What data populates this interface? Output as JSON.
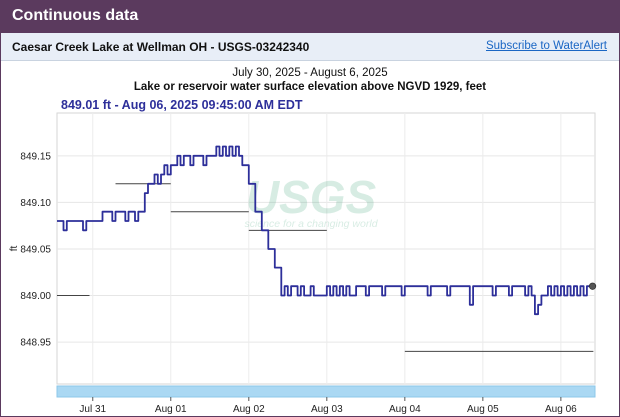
{
  "header": {
    "title": "Continuous data"
  },
  "site": {
    "name": "Caesar Creek Lake at Wellman OH - USGS-03242340",
    "alert_link": "Subscribe to WaterAlert"
  },
  "chart_data": {
    "type": "line",
    "date_range": "July 30, 2025 - August 6, 2025",
    "title": "Lake or reservoir water surface elevation above NGVD 1929, feet",
    "latest_label": "849.01 ft - Aug 06, 2025 09:45:00 AM EDT",
    "ylabel": "ft",
    "ylim": [
      848.905,
      849.196
    ],
    "xlim": [
      "2025-07-30 13:00",
      "2025-08-06 10:30"
    ],
    "y_ticks": [
      848.95,
      849.0,
      849.05,
      849.1,
      849.15
    ],
    "y_tick_labels": [
      "848.95",
      "849.00",
      "849.05",
      "849.10",
      "849.15"
    ],
    "x_ticks": [
      "2025-07-31 00:00",
      "2025-08-01 00:00",
      "2025-08-02 00:00",
      "2025-08-03 00:00",
      "2025-08-04 00:00",
      "2025-08-05 00:00",
      "2025-08-06 00:00"
    ],
    "x_tick_labels": [
      "Jul 31",
      "Aug 01",
      "Aug 02",
      "Aug 03",
      "Aug 04",
      "Aug 05",
      "Aug 06"
    ],
    "grid": true,
    "line_color": "#2d2f9a",
    "series": [
      {
        "values": [
          [
            "2025-07-30 13:00",
            849.08
          ],
          [
            "2025-07-30 14:00",
            849.08
          ],
          [
            "2025-07-30 15:00",
            849.07
          ],
          [
            "2025-07-30 16:00",
            849.08
          ],
          [
            "2025-07-30 20:00",
            849.08
          ],
          [
            "2025-07-30 21:00",
            849.07
          ],
          [
            "2025-07-30 22:00",
            849.08
          ],
          [
            "2025-07-31 01:00",
            849.08
          ],
          [
            "2025-07-31 02:00",
            849.08
          ],
          [
            "2025-07-31 03:00",
            849.09
          ],
          [
            "2025-07-31 05:00",
            849.09
          ],
          [
            "2025-07-31 06:00",
            849.08
          ],
          [
            "2025-07-31 07:00",
            849.09
          ],
          [
            "2025-07-31 09:00",
            849.09
          ],
          [
            "2025-07-31 10:00",
            849.08
          ],
          [
            "2025-07-31 11:00",
            849.09
          ],
          [
            "2025-07-31 12:00",
            849.09
          ],
          [
            "2025-07-31 13:00",
            849.08
          ],
          [
            "2025-07-31 14:00",
            849.09
          ],
          [
            "2025-07-31 16:00",
            849.11
          ],
          [
            "2025-07-31 17:00",
            849.12
          ],
          [
            "2025-07-31 18:00",
            849.12
          ],
          [
            "2025-07-31 19:00",
            849.13
          ],
          [
            "2025-07-31 20:00",
            849.12
          ],
          [
            "2025-07-31 21:00",
            849.13
          ],
          [
            "2025-07-31 22:00",
            849.14
          ],
          [
            "2025-07-31 23:00",
            849.13
          ],
          [
            "2025-08-01 00:00",
            849.14
          ],
          [
            "2025-08-01 01:00",
            849.14
          ],
          [
            "2025-08-01 02:00",
            849.15
          ],
          [
            "2025-08-01 03:00",
            849.14
          ],
          [
            "2025-08-01 04:00",
            849.15
          ],
          [
            "2025-08-01 05:00",
            849.15
          ],
          [
            "2025-08-01 06:00",
            849.14
          ],
          [
            "2025-08-01 07:00",
            849.15
          ],
          [
            "2025-08-01 09:00",
            849.15
          ],
          [
            "2025-08-01 10:00",
            849.14
          ],
          [
            "2025-08-01 11:00",
            849.15
          ],
          [
            "2025-08-01 13:00",
            849.15
          ],
          [
            "2025-08-01 14:00",
            849.16
          ],
          [
            "2025-08-01 15:00",
            849.15
          ],
          [
            "2025-08-01 16:00",
            849.16
          ],
          [
            "2025-08-01 17:00",
            849.15
          ],
          [
            "2025-08-01 18:00",
            849.16
          ],
          [
            "2025-08-01 19:00",
            849.15
          ],
          [
            "2025-08-01 20:00",
            849.16
          ],
          [
            "2025-08-01 21:00",
            849.15
          ],
          [
            "2025-08-01 22:00",
            849.14
          ],
          [
            "2025-08-02 00:00",
            849.12
          ],
          [
            "2025-08-02 02:00",
            849.09
          ],
          [
            "2025-08-02 04:00",
            849.07
          ],
          [
            "2025-08-02 06:00",
            849.05
          ],
          [
            "2025-08-02 08:00",
            849.03
          ],
          [
            "2025-08-02 10:00",
            849.0
          ],
          [
            "2025-08-02 11:00",
            849.01
          ],
          [
            "2025-08-02 12:00",
            849.0
          ],
          [
            "2025-08-02 13:00",
            849.01
          ],
          [
            "2025-08-02 14:00",
            849.01
          ],
          [
            "2025-08-02 15:00",
            849.0
          ],
          [
            "2025-08-02 16:00",
            849.01
          ],
          [
            "2025-08-02 17:00",
            849.0
          ],
          [
            "2025-08-02 19:00",
            849.01
          ],
          [
            "2025-08-02 20:00",
            849.0
          ],
          [
            "2025-08-02 23:00",
            849.0
          ],
          [
            "2025-08-03 00:00",
            849.01
          ],
          [
            "2025-08-03 01:00",
            849.0
          ],
          [
            "2025-08-03 02:00",
            849.01
          ],
          [
            "2025-08-03 03:00",
            849.0
          ],
          [
            "2025-08-03 04:00",
            849.01
          ],
          [
            "2025-08-03 05:00",
            849.0
          ],
          [
            "2025-08-03 06:00",
            849.01
          ],
          [
            "2025-08-03 07:00",
            849.0
          ],
          [
            "2025-08-03 09:00",
            849.01
          ],
          [
            "2025-08-03 11:00",
            849.01
          ],
          [
            "2025-08-03 12:00",
            849.0
          ],
          [
            "2025-08-03 13:00",
            849.01
          ],
          [
            "2025-08-03 16:00",
            849.01
          ],
          [
            "2025-08-03 17:00",
            849.0
          ],
          [
            "2025-08-03 18:00",
            849.01
          ],
          [
            "2025-08-03 22:00",
            849.01
          ],
          [
            "2025-08-03 23:00",
            849.0
          ],
          [
            "2025-08-04 00:00",
            849.01
          ],
          [
            "2025-08-04 06:00",
            849.01
          ],
          [
            "2025-08-04 07:00",
            849.0
          ],
          [
            "2025-08-04 08:00",
            849.01
          ],
          [
            "2025-08-04 12:00",
            849.01
          ],
          [
            "2025-08-04 13:00",
            849.0
          ],
          [
            "2025-08-04 14:00",
            849.01
          ],
          [
            "2025-08-04 19:00",
            849.01
          ],
          [
            "2025-08-04 20:00",
            848.99
          ],
          [
            "2025-08-04 21:00",
            849.01
          ],
          [
            "2025-08-05 02:00",
            849.01
          ],
          [
            "2025-08-05 03:00",
            849.0
          ],
          [
            "2025-08-05 04:00",
            849.01
          ],
          [
            "2025-08-05 07:00",
            849.01
          ],
          [
            "2025-08-05 08:00",
            849.0
          ],
          [
            "2025-08-05 09:00",
            849.01
          ],
          [
            "2025-08-05 12:00",
            849.01
          ],
          [
            "2025-08-05 13:00",
            849.0
          ],
          [
            "2025-08-05 14:00",
            849.01
          ],
          [
            "2025-08-05 15:00",
            849.0
          ],
          [
            "2025-08-05 16:00",
            848.98
          ],
          [
            "2025-08-05 17:00",
            848.99
          ],
          [
            "2025-08-05 18:00",
            849.0
          ],
          [
            "2025-08-05 19:00",
            849.0
          ],
          [
            "2025-08-05 20:00",
            849.01
          ],
          [
            "2025-08-05 21:00",
            849.0
          ],
          [
            "2025-08-05 22:00",
            849.01
          ],
          [
            "2025-08-05 23:00",
            849.0
          ],
          [
            "2025-08-06 00:00",
            849.01
          ],
          [
            "2025-08-06 01:00",
            849.0
          ],
          [
            "2025-08-06 02:00",
            849.01
          ],
          [
            "2025-08-06 03:00",
            849.0
          ],
          [
            "2025-08-06 04:00",
            849.01
          ],
          [
            "2025-08-06 05:00",
            849.0
          ],
          [
            "2025-08-06 06:00",
            849.01
          ],
          [
            "2025-08-06 07:00",
            849.0
          ],
          [
            "2025-08-06 08:00",
            849.01
          ],
          [
            "2025-08-06 09:45",
            849.01
          ]
        ]
      }
    ],
    "reference_segments": [
      {
        "x": [
          "2025-07-30 13:00",
          "2025-07-30 23:00"
        ],
        "y": 849.0
      },
      {
        "x": [
          "2025-07-31 07:00",
          "2025-08-01 00:00"
        ],
        "y": 849.12
      },
      {
        "x": [
          "2025-08-01 00:00",
          "2025-08-02 00:00"
        ],
        "y": 849.09
      },
      {
        "x": [
          "2025-08-02 00:00",
          "2025-08-03 00:00"
        ],
        "y": 849.07
      },
      {
        "x": [
          "2025-08-04 00:00",
          "2025-08-06 10:00"
        ],
        "y": 848.94
      }
    ],
    "watermark": {
      "logo": "USGS",
      "tagline": "science for a changing world"
    }
  }
}
